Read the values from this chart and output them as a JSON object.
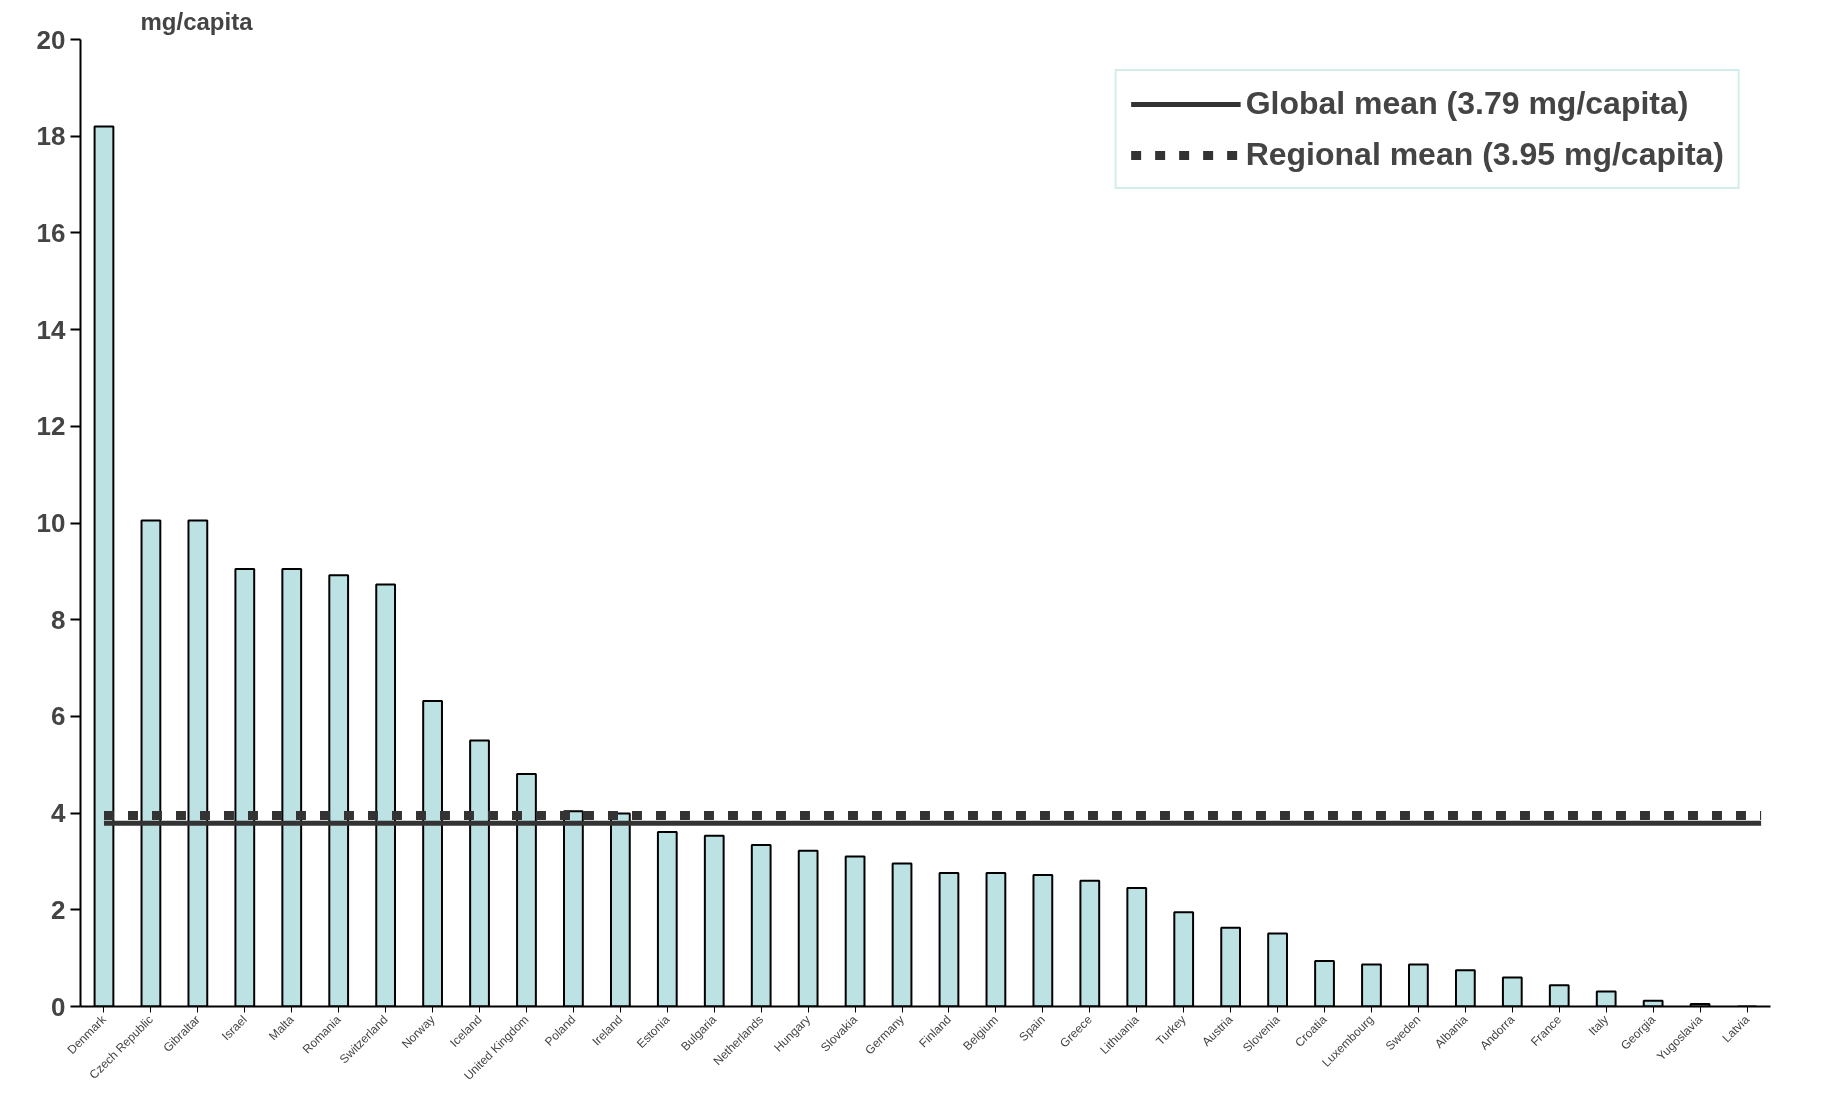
{
  "chart_data": {
    "type": "bar",
    "ylabel": "mg/capita",
    "categories": [
      "Denmark",
      "Czech Republic",
      "Gibraltar",
      "Israel",
      "Malta",
      "Romania",
      "Switzerland",
      "Norway",
      "Iceland",
      "United Kingdom",
      "Poland",
      "Ireland",
      "Estonia",
      "Bulgaria",
      "Netherlands",
      "Hungary",
      "Slovakia",
      "Germany",
      "Finland",
      "Belgium",
      "Spain",
      "Greece",
      "Lithuania",
      "Turkey",
      "Austria",
      "Slovenia",
      "Croatia",
      "Luxembourg",
      "Sweden",
      "Albania",
      "Andorra",
      "France",
      "Italy",
      "Georgia",
      "Yugoslavia",
      "Latvia"
    ],
    "series": [
      {
        "color": "#bde2e4",
        "values": [
          18.2,
          10.05,
          10.05,
          9.05,
          9.05,
          8.92,
          8.73,
          6.32,
          5.5,
          4.81,
          4.04,
          3.99,
          3.61,
          3.53,
          3.34,
          3.22,
          3.1,
          2.96,
          2.76,
          2.76,
          2.72,
          2.6,
          2.45,
          1.95,
          1.63,
          1.51,
          0.94,
          0.87,
          0.87,
          0.75,
          0.6,
          0.44,
          0.31,
          0.12,
          0.05,
          0
        ]
      }
    ],
    "ylim": [
      0,
      20
    ],
    "yticks": [
      0,
      2,
      4,
      6,
      8,
      10,
      12,
      14,
      16,
      18,
      20
    ],
    "ref_lines": [
      {
        "axis": "y",
        "value": 3.79,
        "label": "Global mean (3.79 mg/capita)",
        "color": "#333333",
        "line_style": "solid"
      },
      {
        "axis": "y",
        "value": 3.95,
        "label": "Regional mean (3.95 mg/capita)",
        "color": "#333333",
        "line_style": "dashed"
      }
    ],
    "grid": false,
    "legend": "top right"
  }
}
